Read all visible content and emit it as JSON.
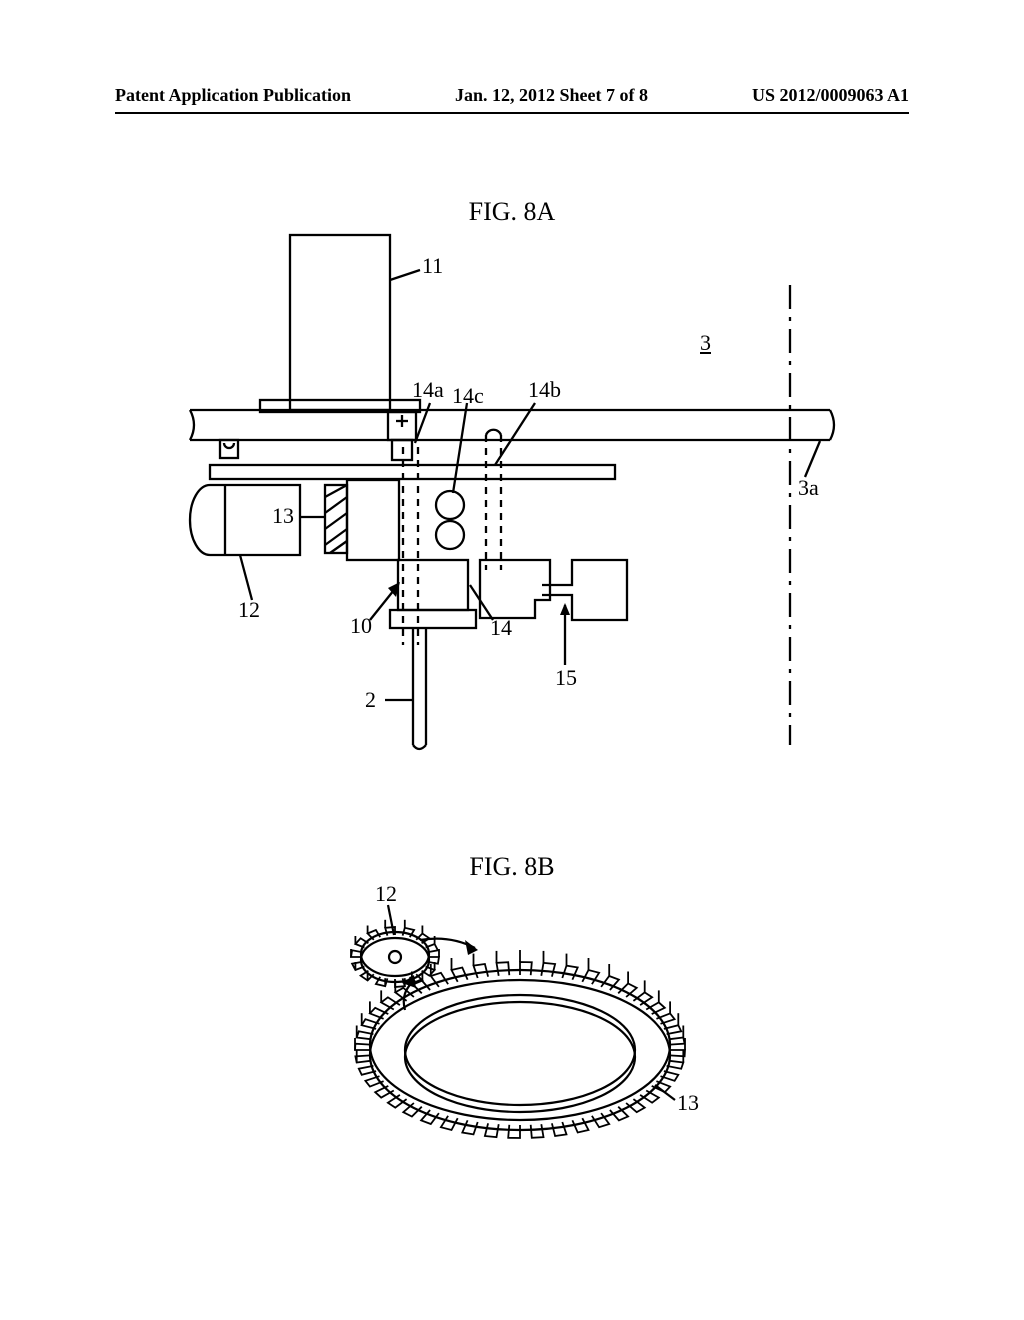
{
  "header": {
    "left": "Patent Application Publication",
    "center": "Jan. 12, 2012  Sheet 7 of 8",
    "right": "US 2012/0009063 A1"
  },
  "figA": {
    "title": "FIG. 8A",
    "refs": {
      "r11": "11",
      "r3u": "3",
      "r14a": "14a",
      "r14c": "14c",
      "r14b": "14b",
      "r13": "13",
      "r3a": "3a",
      "r12": "12",
      "r10": "10",
      "r14": "14",
      "r15": "15",
      "r2": "2"
    },
    "stroke": "#000000",
    "bg": "#ffffff"
  },
  "figB": {
    "title": "FIG. 8B",
    "refs": {
      "r12": "12",
      "r13": "13"
    },
    "stroke": "#000000"
  }
}
